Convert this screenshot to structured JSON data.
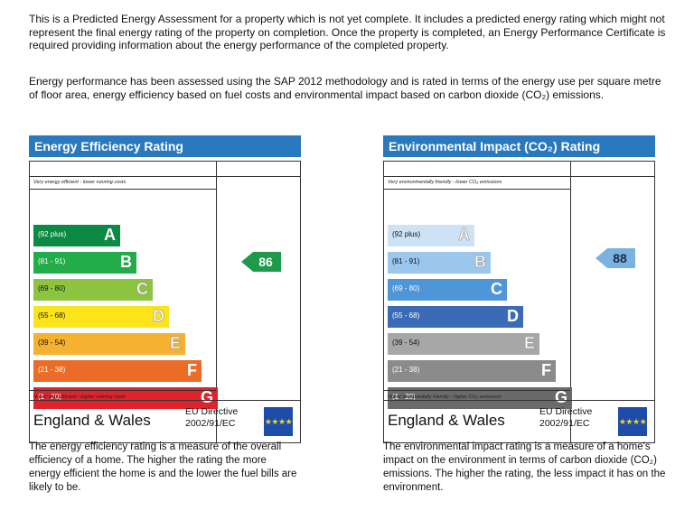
{
  "intro": {
    "p1": "This is a Predicted Energy Assessment for a property which is not yet complete. It includes a predicted energy rating which might not represent the final energy rating of the property on completion. Once the property is completed, an Energy Performance Certificate is required providing information about the energy performance of the completed property.",
    "p2": "Energy performance has been assessed using the SAP 2012 methodology and is rated in terms of the energy use per square metre of floor area, energy efficiency based on fuel costs and environmental impact based on carbon dioxide (CO₂) emissions."
  },
  "energy_efficiency": {
    "title": "Energy Efficiency Rating",
    "top_label": "Very energy efficient - lower running costs",
    "bottom_label": "Not energy efficient - higher running costs",
    "current": "86",
    "current_color": "#1e9a4a",
    "bands": [
      {
        "range": "(92 plus)",
        "letter": "A",
        "color": "#0c8a43"
      },
      {
        "range": "(81 - 91)",
        "letter": "B",
        "color": "#23ad4a"
      },
      {
        "range": "(69 - 80)",
        "letter": "C",
        "color": "#8cc43f"
      },
      {
        "range": "(55 - 68)",
        "letter": "D",
        "color": "#fce41a"
      },
      {
        "range": "(39 - 54)",
        "letter": "E",
        "color": "#f5b130"
      },
      {
        "range": "(21 - 38)",
        "letter": "F",
        "color": "#ea6c28"
      },
      {
        "range": "(1 - 20)",
        "letter": "G",
        "color": "#e0222b"
      }
    ],
    "footer_region": "England & Wales",
    "directive_line1": "EU Directive",
    "directive_line2": "2002/91/EC",
    "description": "The energy efficiency rating is a measure of the overall efficiency of a home. The higher the rating the more energy efficient the home is and the lower the fuel bills are likely to be."
  },
  "environmental_impact": {
    "title": "Environmental Impact (CO₂) Rating",
    "top_label": "Very environmentally friendly - lower CO₂ emissions",
    "bottom_label": "Not environmentally friendly - higher CO₂ emissions",
    "current": "88",
    "current_color": "#7ab2e0",
    "bands": [
      {
        "range": "(92 plus)",
        "letter": "A",
        "color": "#cde3f5"
      },
      {
        "range": "(81 - 91)",
        "letter": "B",
        "color": "#9bc7ec"
      },
      {
        "range": "(69 - 80)",
        "letter": "C",
        "color": "#4f96d8"
      },
      {
        "range": "(55 - 68)",
        "letter": "D",
        "color": "#3a6bb4"
      },
      {
        "range": "(39 - 54)",
        "letter": "E",
        "color": "#a7a7a7"
      },
      {
        "range": "(21 - 38)",
        "letter": "F",
        "color": "#8b8b8b"
      },
      {
        "range": "(1 - 20)",
        "letter": "G",
        "color": "#6a6a6a"
      }
    ],
    "footer_region": "England & Wales",
    "directive_line1": "EU Directive",
    "directive_line2": "2002/91/EC",
    "description": "The environmental impact rating is a measure of a home's impact on the environment in terms of carbon dioxide (CO₂) emissions. The higher the rating, the less impact it has on the environment."
  },
  "flag_icon": "eu-flag-icon",
  "flag_stars": "★★★★"
}
